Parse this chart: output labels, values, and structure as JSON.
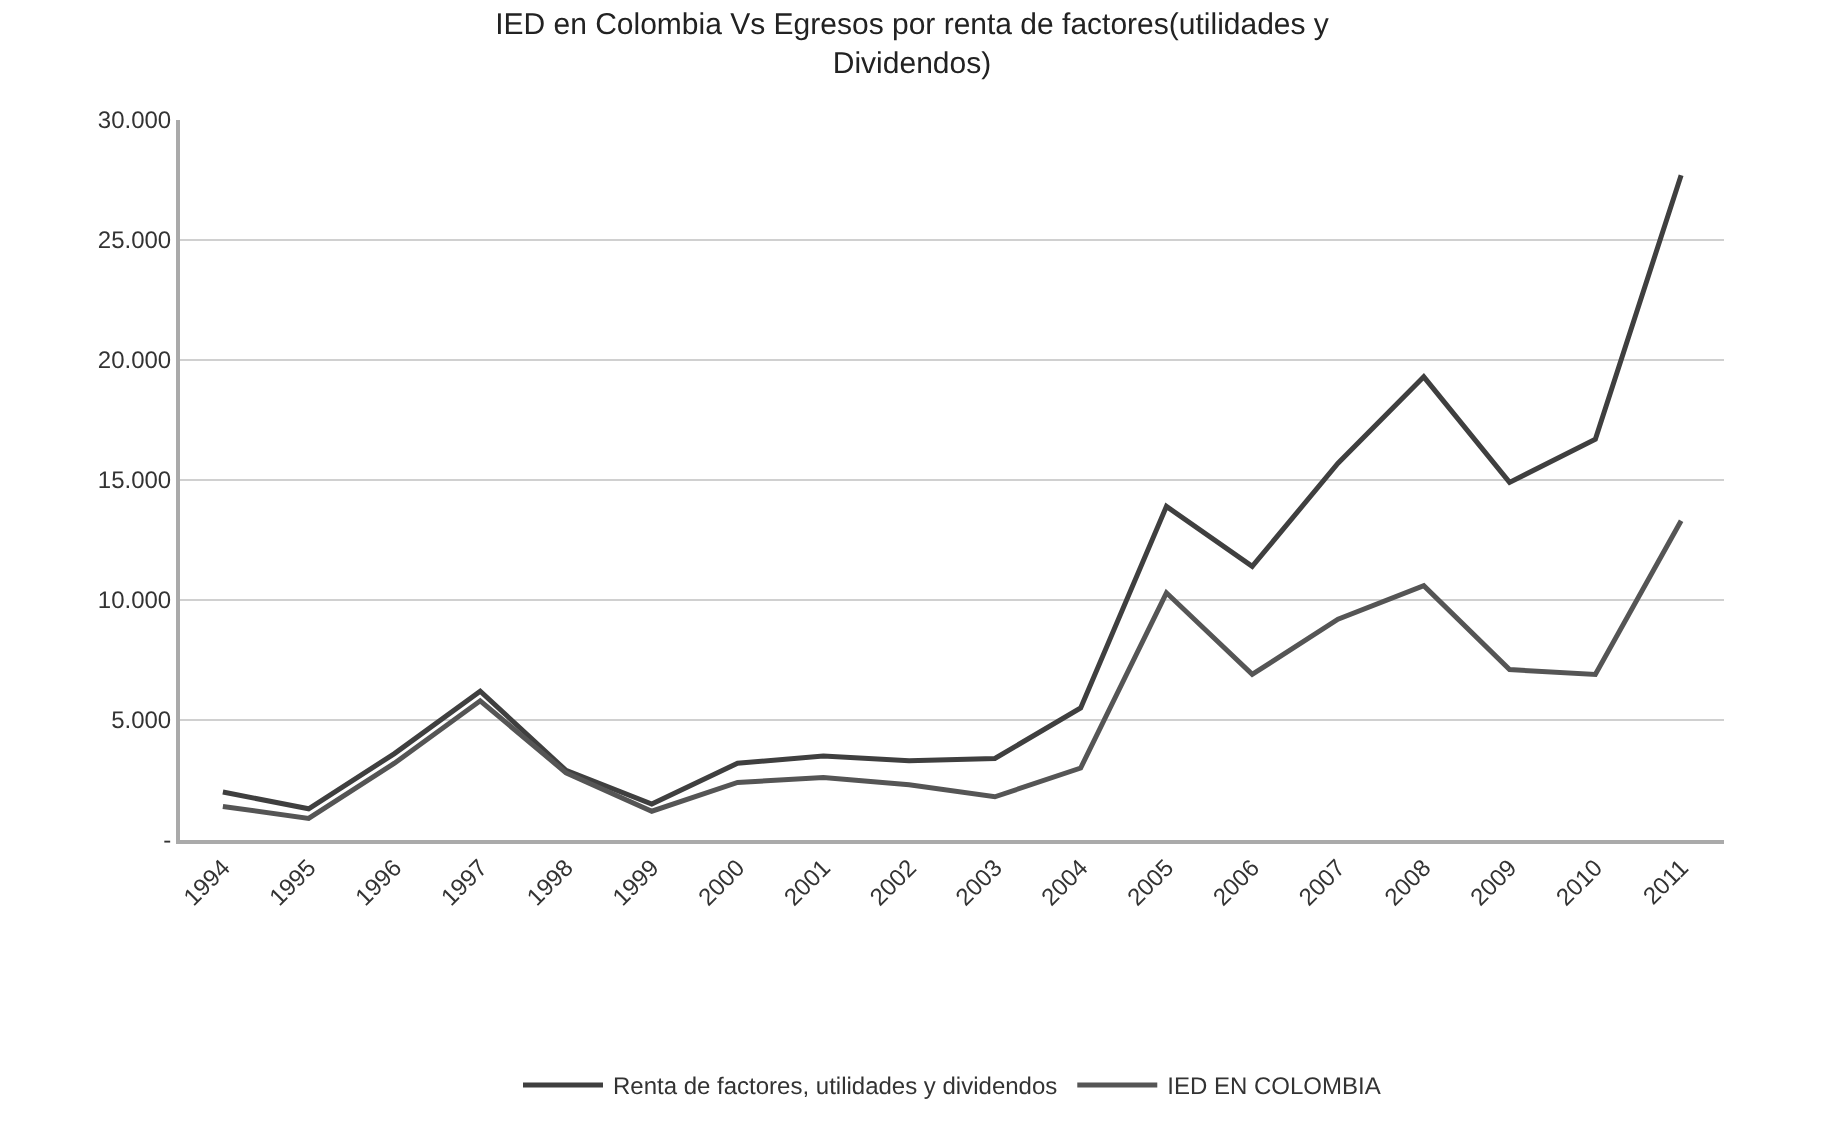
{
  "chart_data": {
    "type": "line",
    "title": "IED en Colombia Vs Egresos por renta de factores(utilidades y\nDividendos)",
    "categories": [
      "1994",
      "1995",
      "1996",
      "1997",
      "1998",
      "1999",
      "2000",
      "2001",
      "2002",
      "2003",
      "2004",
      "2005",
      "2006",
      "2007",
      "2008",
      "2009",
      "2010",
      "2011"
    ],
    "series": [
      {
        "name": "Renta de factores, utilidades y dividendos",
        "color": "#3f3f3f",
        "values": [
          2000,
          1300,
          3600,
          6200,
          2900,
          1500,
          3200,
          3500,
          3300,
          3400,
          5500,
          13900,
          11400,
          15700,
          19300,
          14900,
          16700,
          27700
        ]
      },
      {
        "name": "IED EN COLOMBIA",
        "color": "#555555",
        "values": [
          1400,
          900,
          3200,
          5800,
          2800,
          1200,
          2400,
          2600,
          2300,
          1800,
          3000,
          10300,
          6900,
          9200,
          10600,
          7100,
          6900,
          13300
        ]
      }
    ],
    "ylim": [
      0,
      30000
    ],
    "yticks": [
      {
        "value": 0,
        "label": "-"
      },
      {
        "value": 5000,
        "label": "5.000"
      },
      {
        "value": 10000,
        "label": "10.000"
      },
      {
        "value": 15000,
        "label": "15.000"
      },
      {
        "value": 20000,
        "label": "20.000"
      },
      {
        "value": 25000,
        "label": "25.000"
      },
      {
        "value": 30000,
        "label": "30.000"
      }
    ],
    "grid": "y",
    "legend": "bottom",
    "marker": "none",
    "line_style": "solid"
  }
}
